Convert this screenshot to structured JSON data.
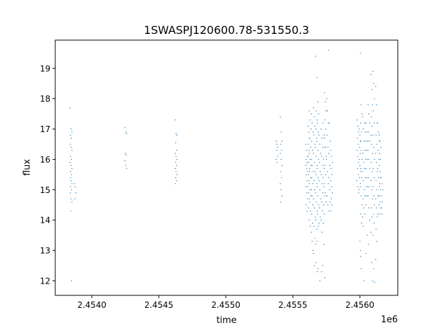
{
  "chart_data": {
    "type": "scatter",
    "title": "1SWASPJ120600.78-531550.3",
    "xlabel": "time",
    "ylabel": "flux",
    "x_offset_label": "1e6",
    "xlim": [
      2453727,
      2456283
    ],
    "ylim": [
      11.52,
      19.93
    ],
    "xticks": [
      2454000,
      2454500,
      2455000,
      2455500,
      2456000
    ],
    "xtick_labels": [
      "2.4540",
      "2.4545",
      "2.4550",
      "2.4555",
      "2.4560"
    ],
    "yticks": [
      12,
      13,
      14,
      15,
      16,
      17,
      18,
      19
    ],
    "ytick_labels": [
      "12",
      "13",
      "14",
      "15",
      "16",
      "17",
      "18",
      "19"
    ],
    "grid": false,
    "marker_color": "#1f77b4",
    "columns": [
      {
        "x": 2453845,
        "y": [
          17.7,
          17.0,
          16.9,
          16.8,
          16.7,
          16.5,
          16.4,
          16.3,
          16.1,
          16.0,
          15.9,
          15.8,
          15.7,
          15.6,
          15.5,
          15.4,
          15.3,
          15.2,
          15.1,
          15.0,
          14.9,
          14.7,
          14.6,
          14.3,
          12.0
        ]
      },
      {
        "x": 2453876,
        "y": [
          15.2,
          15.1,
          14.9,
          14.7
        ]
      },
      {
        "x": 2454253,
        "y": [
          17.05,
          16.9,
          16.85,
          16.2,
          16.15,
          15.95,
          15.8,
          15.7
        ]
      },
      {
        "x": 2454629,
        "y": [
          17.3,
          16.85,
          16.8,
          16.55,
          16.3,
          16.2,
          16.1,
          16.0,
          15.9,
          15.8,
          15.7,
          15.6,
          15.5,
          15.4,
          15.3,
          15.2
        ]
      },
      {
        "x": 2455382,
        "y": [
          16.6,
          16.5,
          16.4,
          16.3,
          16.1,
          16.0,
          15.9
        ]
      },
      {
        "x": 2455412,
        "y": [
          17.4,
          16.9,
          16.6,
          16.5,
          16.3,
          16.2,
          16.0,
          15.8,
          15.6,
          15.4,
          15.2,
          15.0,
          14.8,
          14.6
        ]
      },
      {
        "x": 2455603,
        "y": [
          16.5,
          16.3,
          16.1,
          16.0,
          15.9,
          15.8,
          15.7,
          15.6,
          15.5,
          15.3,
          15.1,
          14.9,
          14.7,
          14.5,
          14.3
        ]
      },
      {
        "x": 2455619,
        "y": [
          17.1,
          16.9,
          16.7,
          16.5,
          16.3,
          16.1,
          15.9,
          15.7,
          15.5,
          15.3,
          15.1,
          14.9,
          14.7,
          14.4
        ]
      },
      {
        "x": 2455629,
        "y": [
          17.6,
          17.3,
          17.0,
          16.7,
          16.4,
          16.2,
          16.0,
          15.8,
          15.6,
          15.4,
          15.2,
          15.0,
          14.8,
          14.6,
          14.3,
          14.0,
          13.8
        ]
      },
      {
        "x": 2455644,
        "y": [
          17.5,
          17.2,
          16.9,
          16.6,
          16.3,
          16.0,
          15.8,
          15.6,
          15.4,
          15.2,
          15.0,
          14.8,
          14.5,
          14.2,
          13.9,
          13.6,
          13.3,
          13.0
        ]
      },
      {
        "x": 2455660,
        "y": [
          17.7,
          17.4,
          17.1,
          16.8,
          16.5,
          16.2,
          15.9,
          15.6,
          15.3,
          15.0,
          14.7,
          14.4,
          14.1,
          13.8,
          13.4,
          12.9,
          12.5
        ]
      },
      {
        "x": 2455675,
        "y": [
          19.4,
          17.6,
          17.3,
          17.0,
          16.7,
          16.4,
          16.1,
          15.8,
          15.5,
          15.2,
          14.9,
          14.6,
          14.3,
          14.0,
          13.7,
          13.2,
          12.6,
          12.3
        ]
      },
      {
        "x": 2455686,
        "y": [
          18.7,
          17.9,
          17.5,
          17.2,
          16.9,
          16.6,
          16.3,
          16.0,
          15.7,
          15.4,
          15.1,
          14.8,
          14.5,
          14.2,
          13.8,
          13.3,
          12.4
        ]
      },
      {
        "x": 2455701,
        "y": [
          16.8,
          16.5,
          16.2,
          15.9,
          15.6,
          15.3,
          15.0,
          14.7,
          14.4,
          14.1,
          13.9,
          12.0
        ]
      },
      {
        "x": 2455717,
        "y": [
          17.0,
          16.7,
          16.4,
          16.1,
          15.8,
          15.5,
          15.2,
          14.9,
          14.6,
          14.3,
          14.0,
          13.6,
          12.5,
          12.3
        ]
      },
      {
        "x": 2455732,
        "y": [
          17.2,
          16.8,
          16.4,
          16.0,
          15.7,
          15.4,
          15.1,
          14.8,
          14.5,
          14.2,
          13.9,
          13.2
        ]
      },
      {
        "x": 2455742,
        "y": [
          18.2,
          17.9,
          17.6,
          17.3,
          17.0,
          16.7,
          16.4,
          16.1,
          15.8,
          15.5,
          15.2,
          14.9,
          14.6,
          12.1
        ]
      },
      {
        "x": 2455758,
        "y": [
          18.0,
          17.6,
          17.2,
          16.8,
          16.4,
          16.0,
          15.6,
          15.2,
          14.8,
          14.5
        ]
      },
      {
        "x": 2455773,
        "y": [
          19.6,
          17.2,
          16.6,
          16.2,
          15.8,
          15.4,
          15.0,
          14.6,
          14.3
        ]
      },
      {
        "x": 2455789,
        "y": [
          16.3,
          16.1,
          15.9,
          15.7,
          15.5,
          15.3,
          15.1,
          14.9,
          14.7,
          14.5,
          14.3
        ]
      },
      {
        "x": 2455985,
        "y": [
          17.3,
          17.1,
          16.9,
          16.7,
          16.5,
          16.3,
          16.1,
          15.9,
          15.7,
          15.5,
          15.3,
          15.1,
          14.9
        ]
      },
      {
        "x": 2456000,
        "y": [
          17.0,
          16.8,
          16.6,
          16.4,
          16.2,
          16.0,
          15.8,
          15.6,
          15.4,
          15.2,
          15.0,
          13.3,
          12.8
        ]
      },
      {
        "x": 2456010,
        "y": [
          19.5,
          17.8,
          17.5,
          17.2,
          16.9,
          16.6,
          16.3,
          16.0,
          15.7,
          15.4,
          15.1,
          14.8,
          14.5,
          14.2,
          13.9,
          13.0,
          12.4
        ]
      },
      {
        "x": 2456026,
        "y": [
          17.4,
          17.0,
          16.6,
          16.2,
          15.9,
          15.6,
          15.3,
          15.0,
          14.7,
          14.4,
          14.1,
          13.8,
          12.0
        ]
      },
      {
        "x": 2456041,
        "y": [
          17.2,
          16.9,
          16.6,
          16.3,
          16.0,
          15.7,
          15.4,
          15.1,
          14.8,
          14.5,
          14.2
        ]
      },
      {
        "x": 2456052,
        "y": [
          17.2,
          16.9,
          16.6,
          16.3,
          16.0,
          15.7,
          15.4,
          15.1,
          14.8,
          13.5,
          12.9
        ]
      },
      {
        "x": 2456067,
        "y": [
          17.8,
          17.5,
          17.2,
          16.9,
          16.6,
          16.3,
          16.0,
          15.7,
          15.4,
          15.1,
          14.8,
          14.4,
          14.0,
          13.2
        ]
      },
      {
        "x": 2456088,
        "y": [
          18.8,
          18.3,
          17.8,
          17.4,
          17.1,
          16.8,
          16.5,
          16.2,
          15.9,
          15.6,
          15.3,
          15.0,
          14.7,
          14.4,
          14.1,
          13.6,
          12.6,
          12.0
        ]
      },
      {
        "x": 2456103,
        "y": [
          18.9,
          18.5,
          18.0,
          17.6,
          17.2,
          16.8,
          16.4,
          16.0,
          15.7,
          15.4,
          15.1,
          14.8,
          14.5,
          14.2,
          13.9,
          13.5,
          12.4,
          11.95
        ]
      },
      {
        "x": 2456124,
        "y": [
          18.4,
          17.8,
          17.2,
          16.8,
          16.5,
          16.2,
          15.9,
          15.6,
          15.3,
          15.0,
          14.7,
          14.4,
          14.1,
          13.7,
          13.3,
          12.7
        ]
      },
      {
        "x": 2456139,
        "y": [
          17.2,
          16.9,
          16.6,
          16.3,
          16.0,
          15.7,
          15.4,
          15.1,
          14.8,
          14.5,
          14.2
        ]
      },
      {
        "x": 2456150,
        "y": [
          16.8,
          16.6,
          16.4,
          16.2,
          16.0,
          15.8,
          15.6,
          15.4,
          15.2,
          15.0,
          14.8,
          14.6,
          14.4,
          14.2
        ]
      },
      {
        "x": 2456165,
        "y": [
          15.4,
          15.2,
          15.0,
          14.8,
          14.6,
          14.4,
          14.2
        ]
      }
    ]
  }
}
